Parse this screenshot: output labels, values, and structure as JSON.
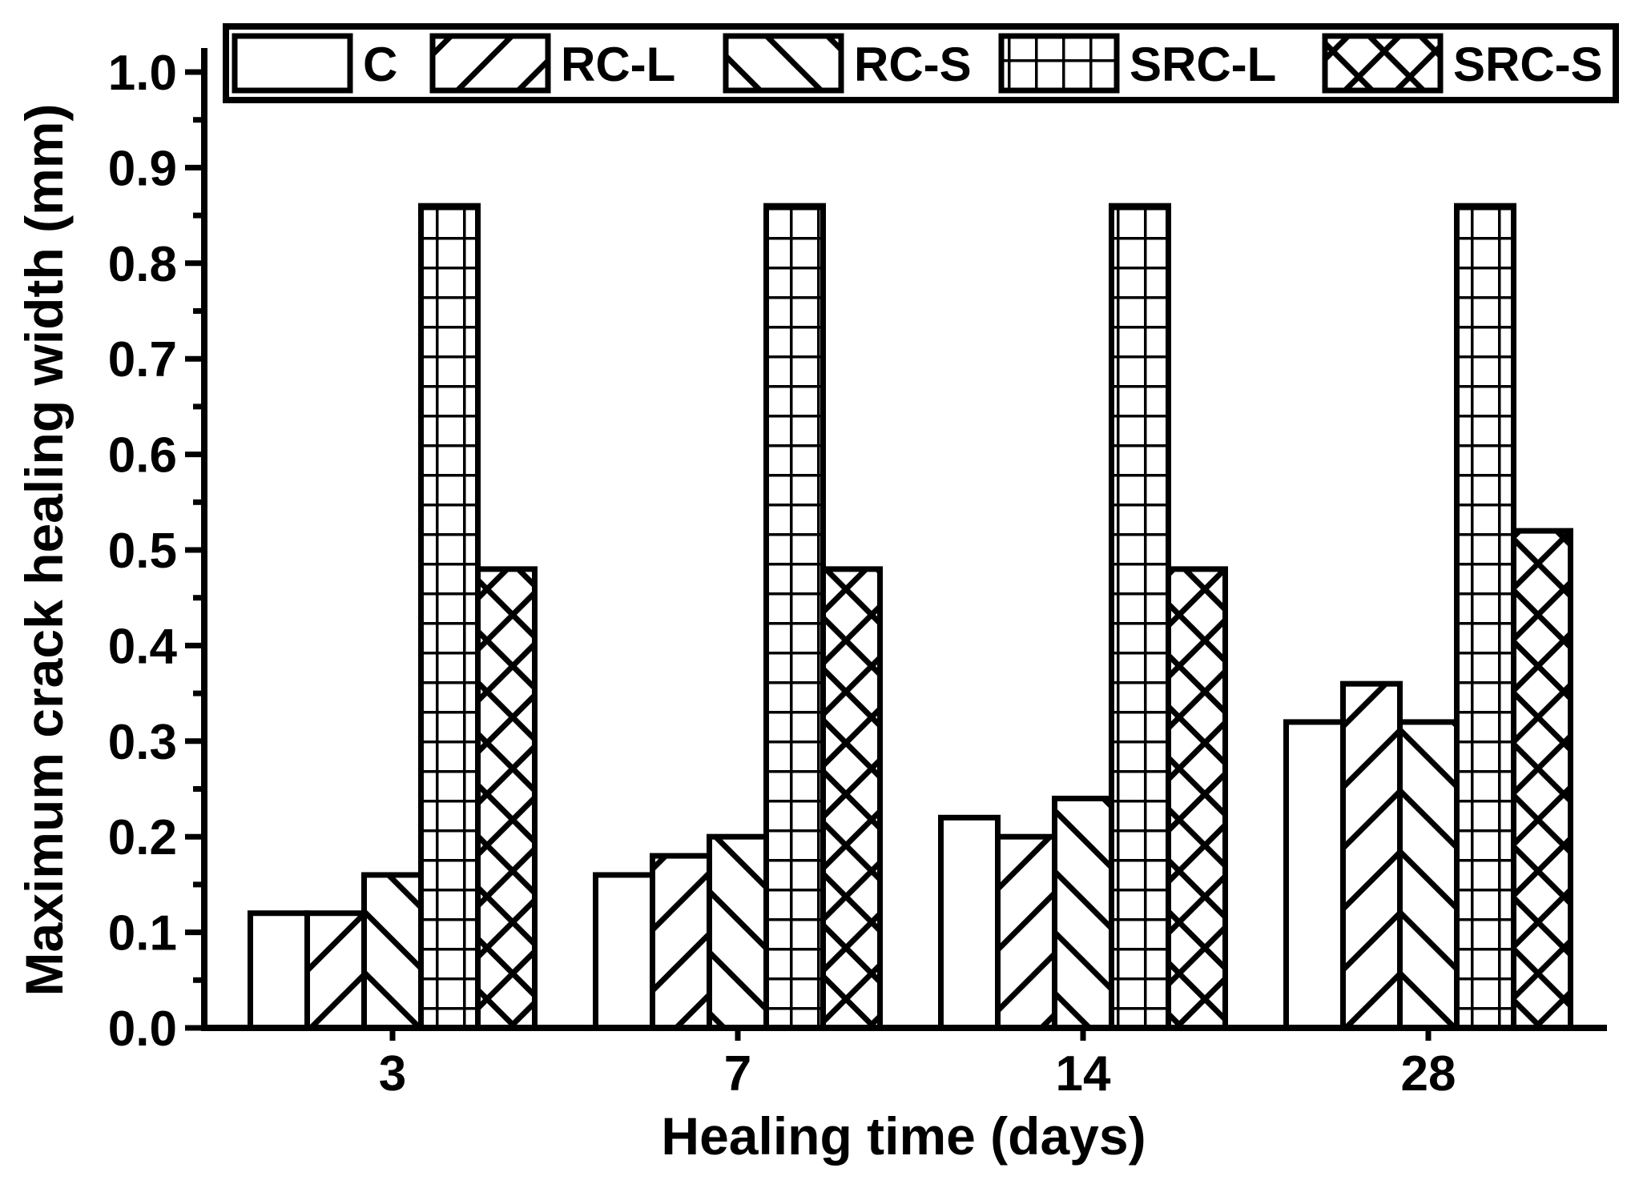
{
  "chart_data": {
    "type": "bar",
    "title": "",
    "xlabel": "Healing time (days)",
    "ylabel": "Maximum crack healing width (mm)",
    "categories": [
      "3",
      "7",
      "14",
      "28"
    ],
    "series": [
      {
        "name": "C",
        "pattern": "solid",
        "values": [
          0.12,
          0.16,
          0.22,
          0.32
        ]
      },
      {
        "name": "RC-L",
        "pattern": "diag-forward",
        "values": [
          0.12,
          0.18,
          0.2,
          0.36
        ]
      },
      {
        "name": "RC-S",
        "pattern": "diag-backward",
        "values": [
          0.16,
          0.2,
          0.24,
          0.32
        ]
      },
      {
        "name": "SRC-L",
        "pattern": "grid",
        "values": [
          0.86,
          0.86,
          0.86,
          0.86
        ]
      },
      {
        "name": "SRC-S",
        "pattern": "crosshatch",
        "values": [
          0.48,
          0.48,
          0.48,
          0.52
        ]
      }
    ],
    "ylim": [
      0.0,
      1.0
    ],
    "y_major_step": 0.1,
    "y_minor_step": 0.05,
    "y_tick_labels": [
      "0.0",
      "0.1",
      "0.2",
      "0.3",
      "0.4",
      "0.5",
      "0.6",
      "0.7",
      "0.8",
      "0.9",
      "1.0"
    ],
    "x_tick_labels": [
      "3",
      "7",
      "14",
      "28"
    ],
    "legend_position": "top",
    "grid": false,
    "colors": {
      "foreground": "#000000",
      "background": "#ffffff"
    }
  }
}
